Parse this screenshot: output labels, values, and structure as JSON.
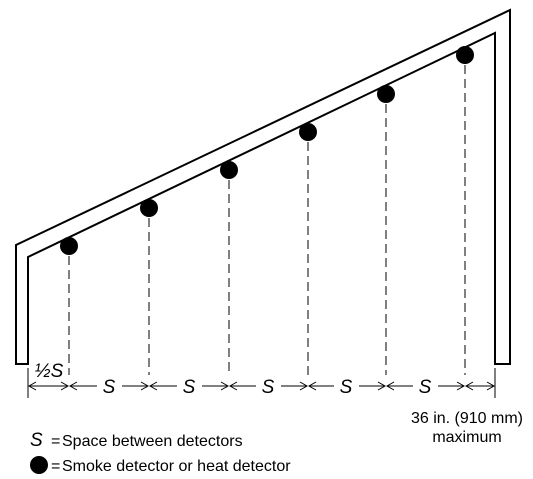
{
  "diagram": {
    "colors": {
      "stroke": "#000000",
      "background": "#ffffff"
    },
    "labels": {
      "half_spacing": "½S",
      "spacing": "S",
      "max_distance_line1": "36 in. (910 mm)",
      "max_distance_line2": "maximum"
    },
    "legend": [
      {
        "symbol": "S",
        "separator": "=",
        "text": "Space between detectors"
      },
      {
        "symbol": "filled-circle",
        "separator": "=",
        "text": "Smoke detector or heat detector"
      }
    ]
  }
}
